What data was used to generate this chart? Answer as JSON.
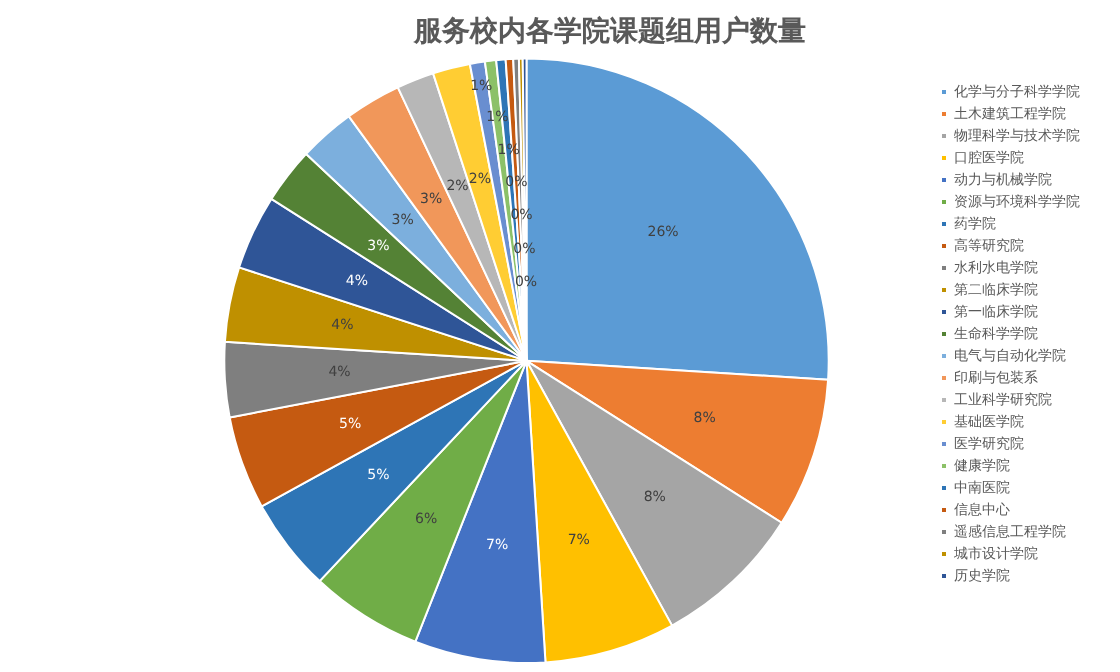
{
  "chart_data": {
    "type": "pie",
    "title": "服务校内各学院课题组用户数量",
    "categories": [
      "化学与分子科学学院",
      "土木建筑工程学院",
      "物理科学与技术学院",
      "口腔医学院",
      "动力与机械学院",
      "资源与环境科学学院",
      "药学院",
      "高等研究院",
      "水利水电学院",
      "第二临床学院",
      "第一临床学院",
      "生命科学学院",
      "电气与自动化学院",
      "印刷与包装系",
      "工业科学研究院",
      "基础医学院",
      "医学研究院",
      "健康学院",
      "中南医院",
      "信息中心",
      "遥感信息工程学院",
      "城市设计学院",
      "历史学院"
    ],
    "values": [
      26,
      8,
      8,
      7,
      7,
      6,
      5,
      5,
      4,
      4,
      4,
      3,
      3,
      3,
      2,
      2,
      0.8,
      0.6,
      0.5,
      0.4,
      0.3,
      0.2,
      0.2
    ],
    "value_labels": [
      "26%",
      "8%",
      "8%",
      "7%",
      "7%",
      "6%",
      "5%",
      "5%",
      "4%",
      "4%",
      "4%",
      "3%",
      "3%",
      "3%",
      "2%",
      "2%",
      "1%",
      "1%",
      "1%",
      "0%",
      "0%",
      "0%",
      "0%"
    ],
    "colors": [
      "#5b9bd5",
      "#ed7d31",
      "#a5a5a5",
      "#ffc000",
      "#4472c4",
      "#70ad47",
      "#2e75b6",
      "#c55a11",
      "#7f7f7f",
      "#bf9000",
      "#2f5597",
      "#548235",
      "#7cafdd",
      "#f1975a",
      "#b7b7b7",
      "#ffcd33",
      "#698ed0",
      "#8cc168",
      "#2e75b6",
      "#c55a11",
      "#7f7f7f",
      "#bf9000",
      "#2f5597"
    ],
    "legend": "right"
  }
}
